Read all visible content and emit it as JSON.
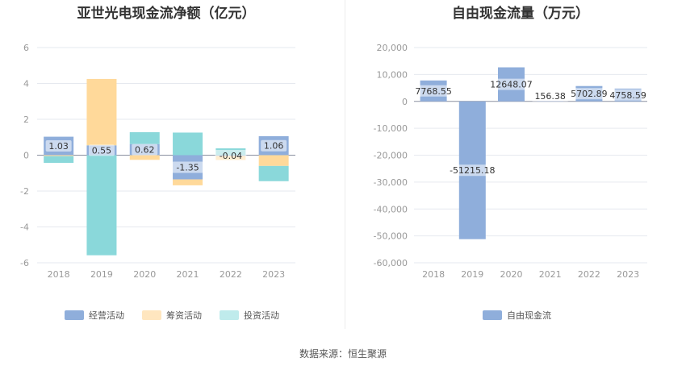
{
  "source": "数据来源：恒生聚源",
  "chart_data": [
    {
      "type": "bar",
      "stacked": true,
      "title": "亚世光电现金流净额（亿元）",
      "categories": [
        "2018",
        "2019",
        "2020",
        "2021",
        "2022",
        "2023"
      ],
      "ylim": [
        -6,
        6
      ],
      "yticks": [
        6,
        4,
        2,
        0,
        -2,
        -4,
        -6
      ],
      "series": [
        {
          "name": "经营活动",
          "color": "#8FAEDB",
          "values": [
            1.03,
            0.55,
            0.62,
            -1.35,
            -0.04,
            1.06
          ]
        },
        {
          "name": "筹资活动",
          "color": "#FFD99A",
          "values": [
            -0.05,
            3.7,
            -0.26,
            -0.33,
            -0.23,
            -0.6
          ]
        },
        {
          "name": "投资活动",
          "color": "#8AD8DA",
          "values": [
            -0.38,
            -5.58,
            0.66,
            1.26,
            0.38,
            -0.85
          ]
        }
      ],
      "data_labels": [
        "1.03",
        "0.55",
        "0.62",
        "-1.35",
        "-0.04",
        "1.06"
      ],
      "legend": [
        "经营活动",
        "筹资活动",
        "投资活动"
      ]
    },
    {
      "type": "bar",
      "title": "自由现金流量（万元）",
      "categories": [
        "2018",
        "2019",
        "2020",
        "2021",
        "2022",
        "2023"
      ],
      "ylim": [
        -60000,
        20000
      ],
      "yticks": [
        "20,000",
        "10,000",
        "0",
        "-10,000",
        "-20,000",
        "-30,000",
        "-40,000",
        "-50,000",
        "-60,000"
      ],
      "series": [
        {
          "name": "自由现金流",
          "color": "#8FAEDB",
          "values": [
            7768.55,
            -51215.18,
            12648.07,
            156.38,
            5702.89,
            4758.59
          ]
        }
      ],
      "data_labels": [
        "7768.55",
        "-51215.18",
        "12648.07",
        "156.38",
        "5702.89",
        "4758.59"
      ],
      "legend": [
        "自由现金流"
      ]
    }
  ]
}
